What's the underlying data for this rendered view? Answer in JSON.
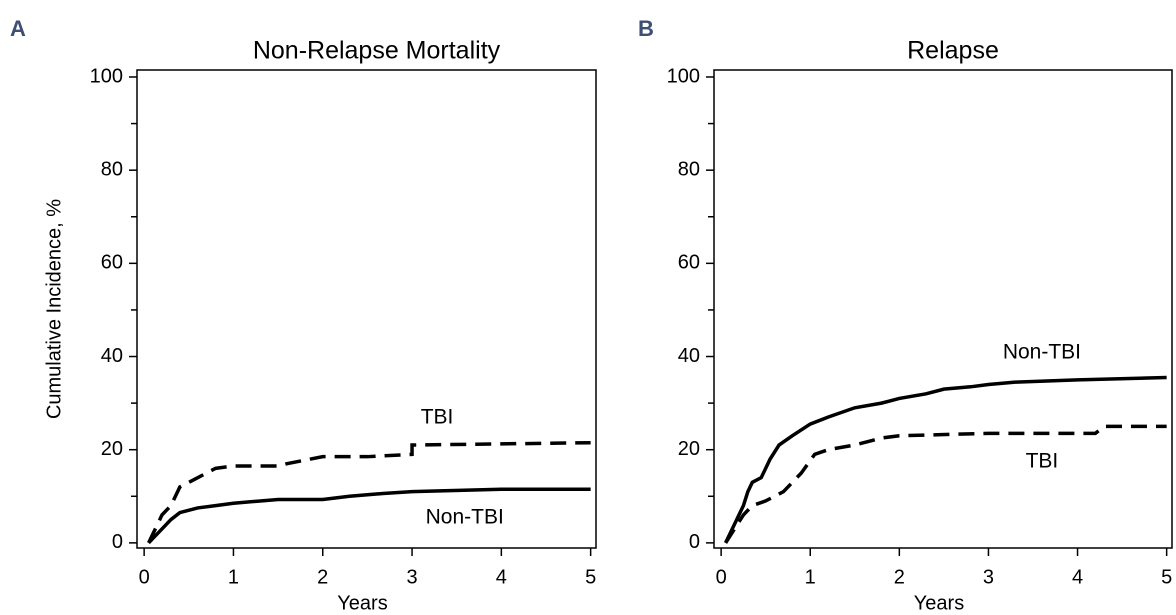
{
  "chart_data": [
    {
      "type": "line",
      "panel": "A",
      "title": "Non-Relapse Mortality",
      "xlabel": "Years",
      "ylabel": "Cumulative Incidence, %",
      "xlim": [
        -0.08,
        5.06
      ],
      "ylim": [
        -1.1,
        101.5
      ],
      "xticks": [
        0,
        1,
        2,
        3,
        4,
        5
      ],
      "yticks": [
        0,
        20,
        40,
        60,
        80,
        100
      ],
      "yminorticks": [
        10,
        30,
        50,
        70,
        90
      ],
      "series": [
        {
          "name": "TBI",
          "color": "#000000",
          "dashed": true,
          "x": [
            0.05,
            0.1,
            0.2,
            0.3,
            0.4,
            0.5,
            0.6,
            0.7,
            0.8,
            1.0,
            1.5,
            1.6,
            2.0,
            2.5,
            3.0,
            3.0,
            5.0
          ],
          "values": [
            0,
            2,
            6,
            8,
            12,
            13,
            14,
            15,
            16,
            16.5,
            16.5,
            17,
            18.5,
            18.5,
            19,
            21,
            21.5
          ]
        },
        {
          "name": "Non-TBI",
          "color": "#000000",
          "dashed": false,
          "x": [
            0.05,
            0.1,
            0.2,
            0.3,
            0.4,
            0.6,
            0.8,
            1.0,
            1.3,
            1.5,
            2.0,
            2.3,
            2.6,
            3.0,
            4.0,
            5.0
          ],
          "values": [
            0,
            1,
            3,
            5,
            6.5,
            7.5,
            8,
            8.5,
            9,
            9.3,
            9.3,
            10,
            10.5,
            11,
            11.5,
            11.5
          ]
        }
      ]
    },
    {
      "type": "line",
      "panel": "B",
      "title": "Relapse",
      "xlabel": "Years",
      "xlim": [
        -0.08,
        5.06
      ],
      "ylim": [
        -1.1,
        101.5
      ],
      "xticks": [
        0,
        1,
        2,
        3,
        4,
        5
      ],
      "yticks": [
        0,
        20,
        40,
        60,
        80,
        100
      ],
      "yminorticks": [
        10,
        30,
        50,
        70,
        90
      ],
      "series": [
        {
          "name": "Non-TBI",
          "color": "#000000",
          "dashed": false,
          "x": [
            0.05,
            0.15,
            0.25,
            0.3,
            0.35,
            0.45,
            0.55,
            0.65,
            0.8,
            1.0,
            1.2,
            1.5,
            1.8,
            2.0,
            2.3,
            2.5,
            2.8,
            3.0,
            3.3,
            4.0,
            5.0
          ],
          "values": [
            0,
            4,
            8,
            11,
            13,
            14,
            18,
            21,
            23,
            25.5,
            27,
            29,
            30,
            31,
            32,
            33,
            33.5,
            34,
            34.5,
            35,
            35.5
          ]
        },
        {
          "name": "TBI",
          "color": "#000000",
          "dashed": true,
          "x": [
            0.05,
            0.15,
            0.25,
            0.35,
            0.5,
            0.7,
            0.9,
            1.05,
            1.2,
            1.5,
            1.8,
            2.0,
            3.0,
            4.2,
            4.3,
            5.0
          ],
          "values": [
            0,
            3,
            6,
            8,
            9,
            11,
            15,
            19,
            20,
            21,
            22.5,
            23,
            23.5,
            23.5,
            25,
            25
          ]
        }
      ]
    }
  ]
}
